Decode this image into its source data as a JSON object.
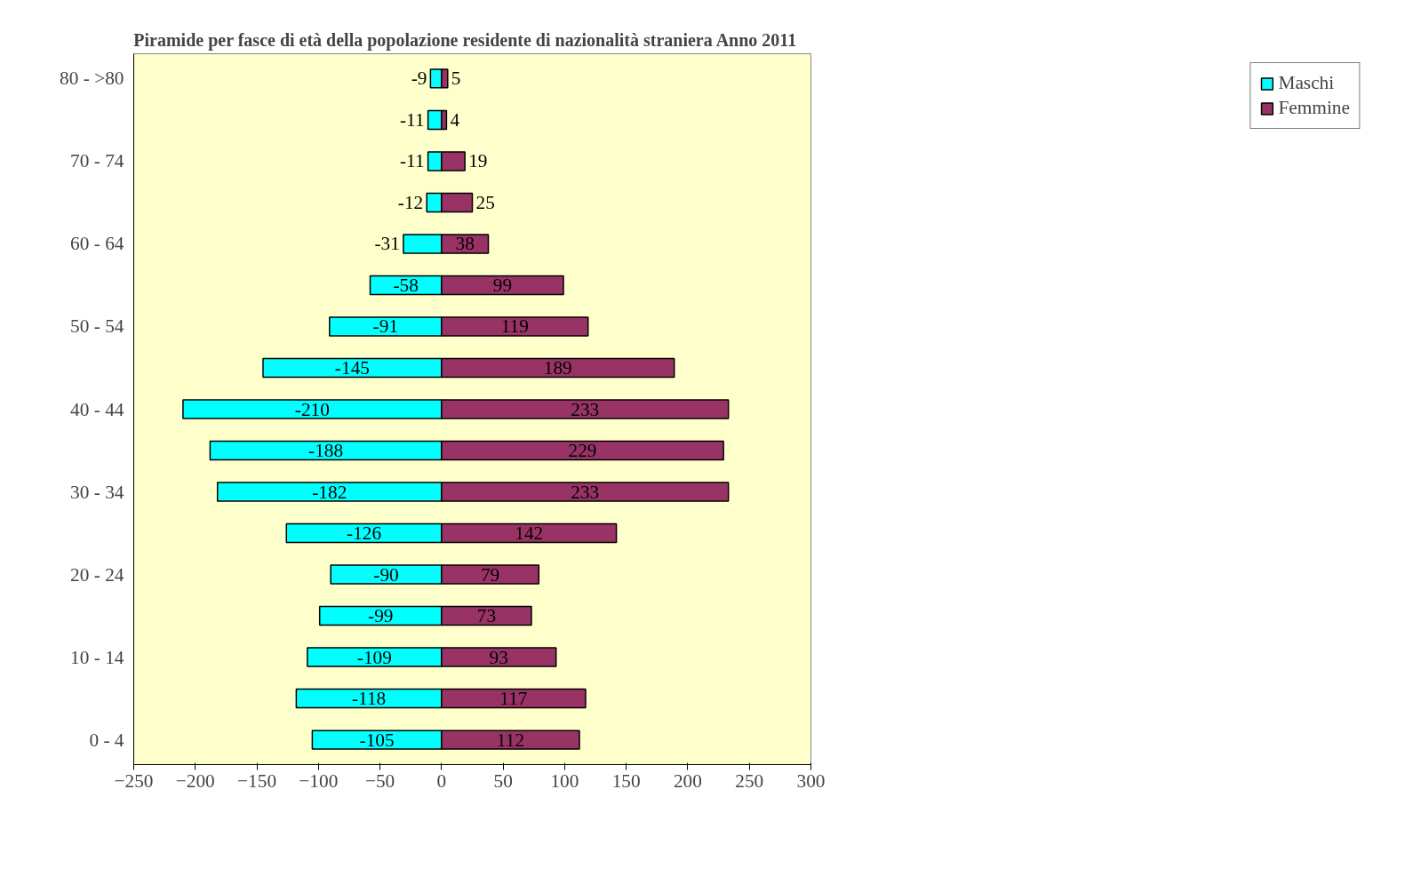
{
  "chart_data": {
    "type": "bar",
    "orientation": "horizontal",
    "stacked": true,
    "title": "Piramide per fasce di età della popolazione residente di nazionalità straniera    Anno 2011",
    "categories": [
      "80 - >80",
      null,
      "70 - 74",
      null,
      "60 - 64",
      null,
      "50 - 54",
      null,
      "40 - 44",
      null,
      "30 - 34",
      null,
      "20 - 24",
      null,
      "10 - 14",
      null,
      "0 - 4"
    ],
    "series": [
      {
        "name": "Maschi",
        "color": "#00ffff",
        "values": [
          -9,
          -11,
          -11,
          -12,
          -31,
          -58,
          -91,
          -145,
          -210,
          -188,
          -182,
          -126,
          -90,
          -99,
          -109,
          -118,
          -105
        ]
      },
      {
        "name": "Femmine",
        "color": "#993366",
        "values": [
          5,
          4,
          19,
          25,
          38,
          99,
          119,
          189,
          233,
          229,
          233,
          142,
          79,
          73,
          93,
          117,
          112
        ]
      }
    ],
    "xlim": [
      -250,
      300
    ],
    "xticks": [
      -250,
      -200,
      -150,
      -100,
      -50,
      0,
      50,
      100,
      150,
      200,
      250,
      300
    ],
    "data_labels": true,
    "grid": false,
    "legend": "right"
  }
}
